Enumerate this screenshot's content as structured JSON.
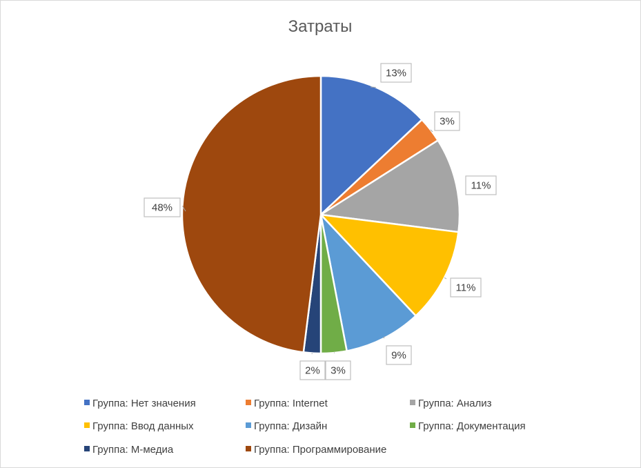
{
  "chart_data": {
    "type": "pie",
    "title": "Затраты",
    "categories": [
      "Группа: Нет значения",
      "Группа: Internet",
      "Группа: Анализ",
      "Группа: Ввод данных",
      "Группа: Дизайн",
      "Группа: Документация",
      "Группа: М-медиа",
      "Группа: Программирование"
    ],
    "values": [
      13,
      3,
      11,
      11,
      9,
      3,
      2,
      48
    ],
    "labels": [
      "13%",
      "3%",
      "11%",
      "11%",
      "9%",
      "3%",
      "2%",
      "48%"
    ],
    "colors": [
      "#4472C4",
      "#ED7D31",
      "#A5A5A5",
      "#FFC000",
      "#5B9BD5",
      "#70AD47",
      "#264478",
      "#9E480E"
    ],
    "legend_position": "bottom",
    "start_angle": "12 o'clock",
    "direction": "clockwise"
  }
}
